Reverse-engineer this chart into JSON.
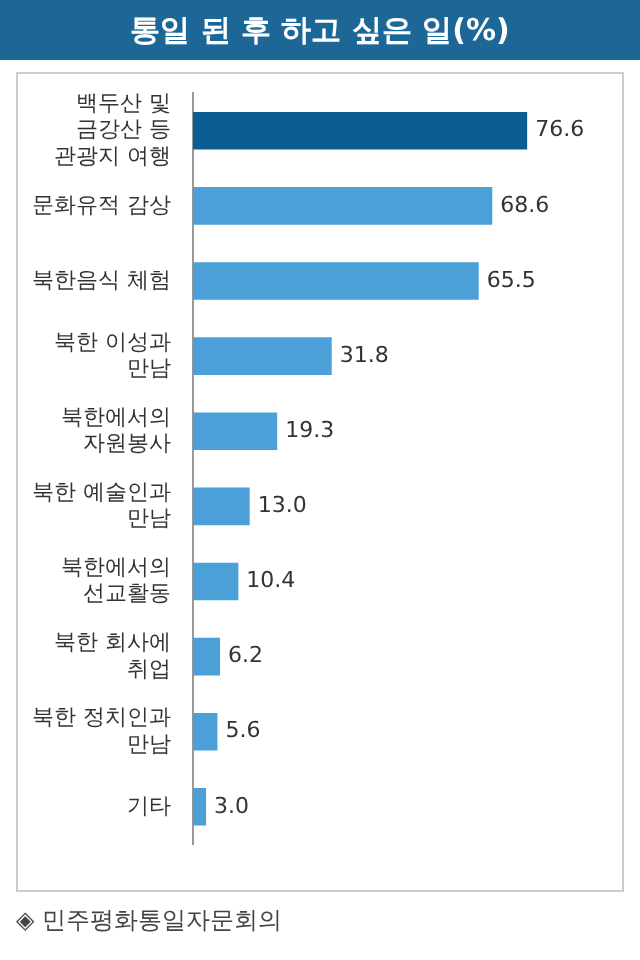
{
  "chart_data": {
    "type": "bar",
    "orientation": "horizontal",
    "title": "통일 된 후 하고 싶은 일(%)",
    "categories": [
      "백두산 및 금강산 등 관광지 여행",
      "문화유적 감상",
      "북한음식 체험",
      "북한 이성과 만남",
      "북한에서의 자원봉사",
      "북한 예술인과 만남",
      "북한에서의 선교활동",
      "북한 회사에 취업",
      "북한 정치인과 만남",
      "기타"
    ],
    "values": [
      76.6,
      68.6,
      65.5,
      31.8,
      19.3,
      13.0,
      10.4,
      6.2,
      5.6,
      3.0
    ],
    "value_labels": [
      "76.6",
      "68.6",
      "65.5",
      "31.8",
      "19.3",
      "13.0",
      "10.4",
      "6.2",
      "5.6",
      "3.0"
    ],
    "colors": [
      "#0b5e91",
      "#4aa0d7",
      "#4aa0d7",
      "#4aa0d7",
      "#4aa0d7",
      "#4aa0d7",
      "#4aa0d7",
      "#4aa0d7",
      "#4aa0d7",
      "#4aa0d7"
    ],
    "grid": false,
    "legend": false,
    "tick_labels": "y",
    "annotations": [
      "◈ 민주평화통일자문회의"
    ]
  }
}
